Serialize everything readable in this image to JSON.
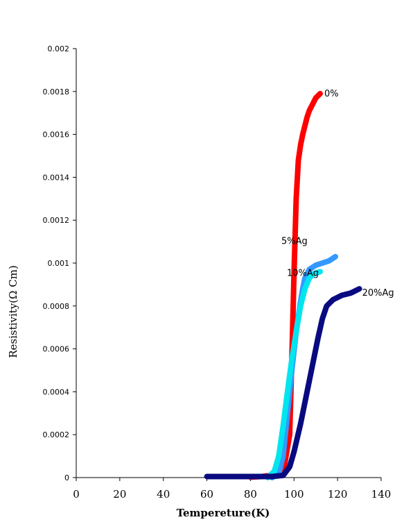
{
  "chart_data": {
    "type": "line",
    "xlabel": "Tempereture(K)",
    "ylabel": "Resistivity(Ω Cm)",
    "xlim": [
      0,
      140
    ],
    "ylim": [
      0,
      0.002
    ],
    "x_ticks": [
      "0",
      "20",
      "40",
      "60",
      "80",
      "100",
      "120",
      "140"
    ],
    "y_ticks": [
      "0",
      "0.0002",
      "0.0004",
      "0.0006",
      "0.0008",
      "0.001",
      "0.0012",
      "0.0014",
      "0.0016",
      "0.0018",
      "0.002"
    ],
    "grid": false,
    "series": [
      {
        "name": "0%",
        "color": "#ff0000",
        "x": [
          80,
          85,
          90,
          95,
          98,
          99,
          100,
          101,
          102,
          103,
          104,
          105,
          106,
          107,
          108,
          110,
          112
        ],
        "y": [
          2e-06,
          5e-06,
          1e-05,
          2e-05,
          0.0002,
          0.00055,
          0.00095,
          0.0013,
          0.00148,
          0.00155,
          0.0016,
          0.00164,
          0.00168,
          0.00171,
          0.00173,
          0.00177,
          0.00179
        ]
      },
      {
        "name": "5%Ag",
        "color": "#3399ff",
        "x": [
          90,
          93,
          95,
          97,
          99,
          101,
          103,
          104,
          105,
          107,
          110,
          113,
          116,
          119
        ],
        "y": [
          0.0,
          2e-05,
          0.0001,
          0.0003,
          0.0005,
          0.00068,
          0.00082,
          0.00088,
          0.00093,
          0.00097,
          0.00099,
          0.001,
          0.00101,
          0.00103
        ]
      },
      {
        "name": "10%Ag",
        "color": "#00e5ee",
        "x": [
          88,
          91,
          93,
          95,
          97,
          99,
          101,
          103,
          105,
          107,
          109,
          112
        ],
        "y": [
          0.0,
          3e-05,
          0.0001,
          0.00024,
          0.0004,
          0.00055,
          0.00068,
          0.0008,
          0.00088,
          0.00093,
          0.00095,
          0.00096
        ]
      },
      {
        "name": "20%Ag",
        "color": "#0a0a80",
        "x": [
          60,
          70,
          80,
          90,
          95,
          98,
          100,
          103,
          106,
          109,
          111,
          113,
          115,
          118,
          122,
          126,
          130
        ],
        "y": [
          5e-06,
          5e-06,
          5e-06,
          5e-06,
          1e-05,
          5e-05,
          0.00012,
          0.00025,
          0.0004,
          0.00055,
          0.00065,
          0.00074,
          0.0008,
          0.00083,
          0.00085,
          0.00086,
          0.00088
        ]
      }
    ]
  }
}
